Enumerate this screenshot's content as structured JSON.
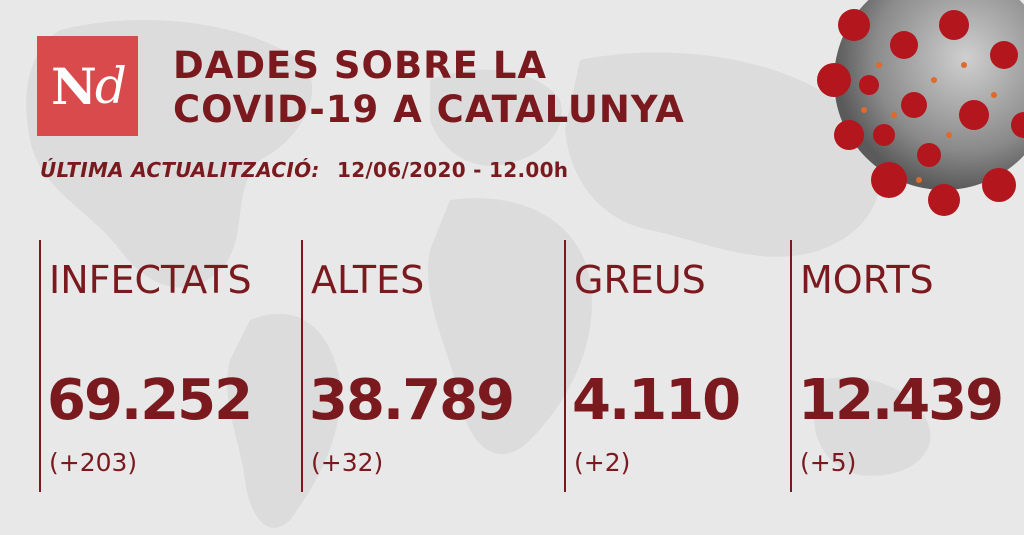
{
  "brand": {
    "logo_main": "N",
    "logo_italic": "d"
  },
  "title": {
    "line1": "DADES SOBRE LA",
    "line2": "COVID-19 A CATALUNYA"
  },
  "update": {
    "label": "ÚLTIMA ACTUALITZACIÓ:",
    "value": "12/06/2020 - 12.00h"
  },
  "stats": [
    {
      "label": "INFECTATS",
      "value": "69.252",
      "delta": "(+203)"
    },
    {
      "label": "ALTES",
      "value": "38.789",
      "delta": "(+32)"
    },
    {
      "label": "GREUS",
      "value": "4.110",
      "delta": "(+2)"
    },
    {
      "label": "MORTS",
      "value": "12.439",
      "delta": "(+5)"
    }
  ],
  "colors": {
    "accent": "#7a1a1f",
    "logo_bg": "#d94a4d",
    "background": "#e9e9e9"
  },
  "icons": {
    "decoration": "coronavirus-icon",
    "background": "world-map-icon"
  }
}
